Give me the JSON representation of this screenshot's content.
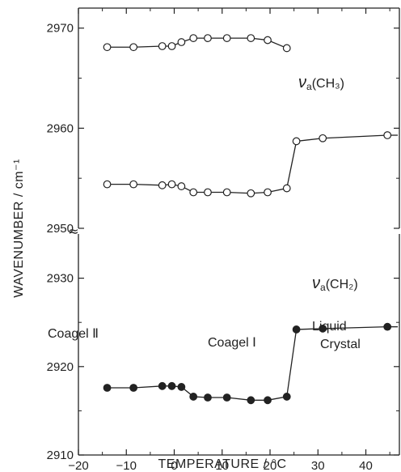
{
  "chart_data": {
    "type": "scatter",
    "xlabel": "TEMPERATURE  /  °C",
    "ylabel": "WAVENUMBER  / cm⁻¹",
    "xlim": [
      -20,
      47
    ],
    "ylim_upper": [
      2950,
      2972
    ],
    "ylim_lower": [
      2910,
      2935
    ],
    "axis_break": "≈",
    "x_ticks": [
      -20,
      -10,
      0,
      10,
      20,
      30,
      40
    ],
    "x_tick_labels": [
      "−20",
      "−10",
      "0",
      "10",
      "20",
      "30",
      "40"
    ],
    "y_ticks_upper": [
      2950,
      2960,
      2970
    ],
    "y_ticks_lower": [
      2910,
      2920,
      2930
    ],
    "grid": false,
    "series": [
      {
        "marker": "open-circle",
        "x": [
          -14,
          -8.5,
          -2.5,
          -0.5,
          1.5,
          4,
          7,
          11,
          16,
          19.5,
          23.5
        ],
        "y": [
          2968.1,
          2968.1,
          2968.2,
          2968.2,
          2968.6,
          2969.0,
          2969.0,
          2969.0,
          2969.0,
          2968.8,
          2968.0
        ]
      },
      {
        "marker": "open-circle",
        "x": [
          -14,
          -8.5,
          -2.5,
          -0.5,
          1.5,
          4,
          7,
          11,
          16,
          19.5,
          23.5,
          25.5,
          31,
          44.5
        ],
        "y": [
          2954.4,
          2954.4,
          2954.3,
          2954.4,
          2954.2,
          2953.6,
          2953.6,
          2953.6,
          2953.5,
          2953.6,
          2954.0,
          2958.7,
          2959.0,
          2959.3
        ]
      },
      {
        "marker": "filled-circle",
        "x": [
          -14,
          -8.5,
          -2.5,
          -0.5,
          1.5,
          4,
          7,
          11,
          16,
          19.5,
          23.5,
          25.5,
          31,
          44.5
        ],
        "y": [
          2917.6,
          2917.6,
          2917.8,
          2917.8,
          2917.7,
          2916.6,
          2916.5,
          2916.5,
          2916.2,
          2916.2,
          2916.6,
          2924.2,
          2924.3,
          2924.5
        ]
      }
    ],
    "annotations": [
      {
        "text": "Va(CH₃)",
        "nu": "ν",
        "sub": "a",
        "rest": "(CH₃)"
      },
      {
        "text": "Va(CH₂)",
        "nu": "ν",
        "sub": "a",
        "rest": "(CH₂)"
      },
      {
        "text": "Coagel Ⅱ"
      },
      {
        "text": "Coagel Ⅰ"
      },
      {
        "text": "Liquid"
      },
      {
        "text": "Crystal"
      }
    ]
  }
}
